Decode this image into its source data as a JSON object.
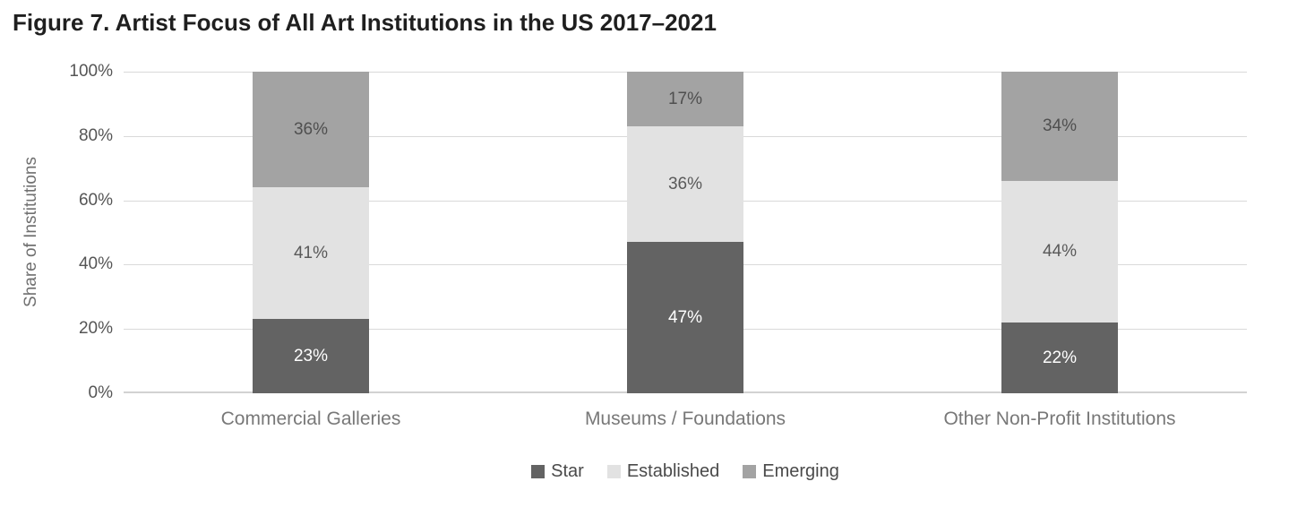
{
  "chart_data": {
    "type": "bar",
    "stacked": true,
    "title": "Figure 7. Artist Focus of All Art Institutions in the US 2017–2021",
    "ylabel": "Share of Institutions",
    "xlabel": "",
    "ylim": [
      0,
      100
    ],
    "yticks": [
      "0%",
      "20%",
      "40%",
      "60%",
      "80%",
      "100%"
    ],
    "grid": true,
    "legend_position": "bottom",
    "value_suffix": "%",
    "categories": [
      "Commercial Galleries",
      "Museums / Foundations",
      "Other Non-Profit Institutions"
    ],
    "series": [
      {
        "name": "Star",
        "color": "#636363",
        "label_color": "#ffffff",
        "values": [
          23,
          47,
          22
        ]
      },
      {
        "name": "Established",
        "color": "#e2e2e2",
        "label_color": "#595959",
        "values": [
          41,
          36,
          44
        ]
      },
      {
        "name": "Emerging",
        "color": "#a3a3a3",
        "label_color": "#4f4f4f",
        "values": [
          36,
          17,
          34
        ]
      }
    ],
    "style": {
      "title_color": "#1f1f1f",
      "axis_title_color": "#707070",
      "tick_label_color": "#555555",
      "category_label_color": "#787878",
      "legend_text_color": "#4a4a4a",
      "gridline_color": "#d9d9d9",
      "axis_line_color": "#d2d2d2"
    }
  }
}
